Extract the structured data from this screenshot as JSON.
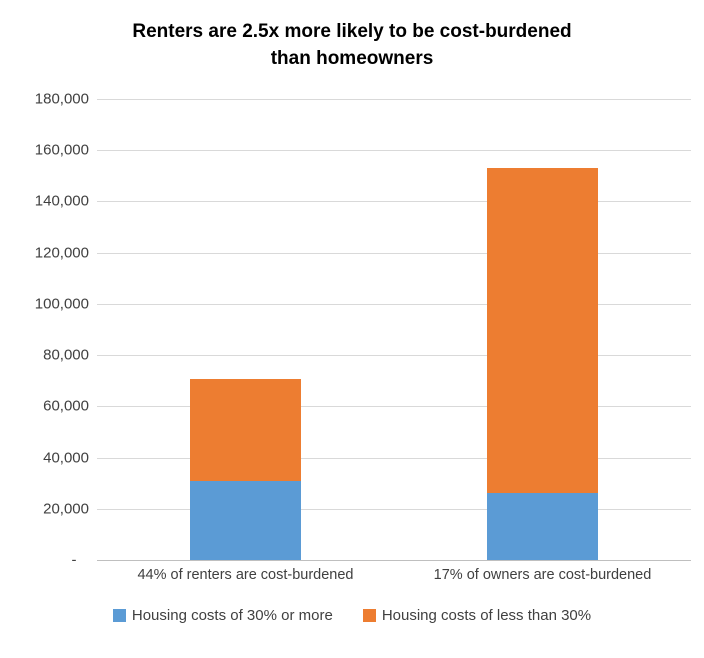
{
  "chart_data": {
    "type": "bar",
    "stacked": true,
    "title": "Renters are 2.5x more likely to be cost-burdened than homeowners",
    "title_lines": [
      "Renters are 2.5x more likely to be cost-burdened",
      "than homeowners"
    ],
    "categories": [
      "44% of renters are cost-burdened",
      "17% of owners are cost-burdened"
    ],
    "series": [
      {
        "name": "Housing costs of 30% or more",
        "color": "#5B9BD5",
        "values": [
          31000,
          26000
        ]
      },
      {
        "name": "Housing costs of less than 30%",
        "color": "#ED7D31",
        "values": [
          39500,
          127000
        ]
      }
    ],
    "totals": [
      70500,
      153000
    ],
    "ylim": [
      0,
      180000
    ],
    "ytick_step": 20000,
    "ytick_labels": [
      "-   ",
      "20,000",
      "40,000",
      "60,000",
      "80,000",
      "100,000",
      "120,000",
      "140,000",
      "160,000",
      "180,000"
    ],
    "grid": true,
    "legend_position": "bottom",
    "axis_text_color": "#404040",
    "gridline_color": "#D9D9D9"
  }
}
